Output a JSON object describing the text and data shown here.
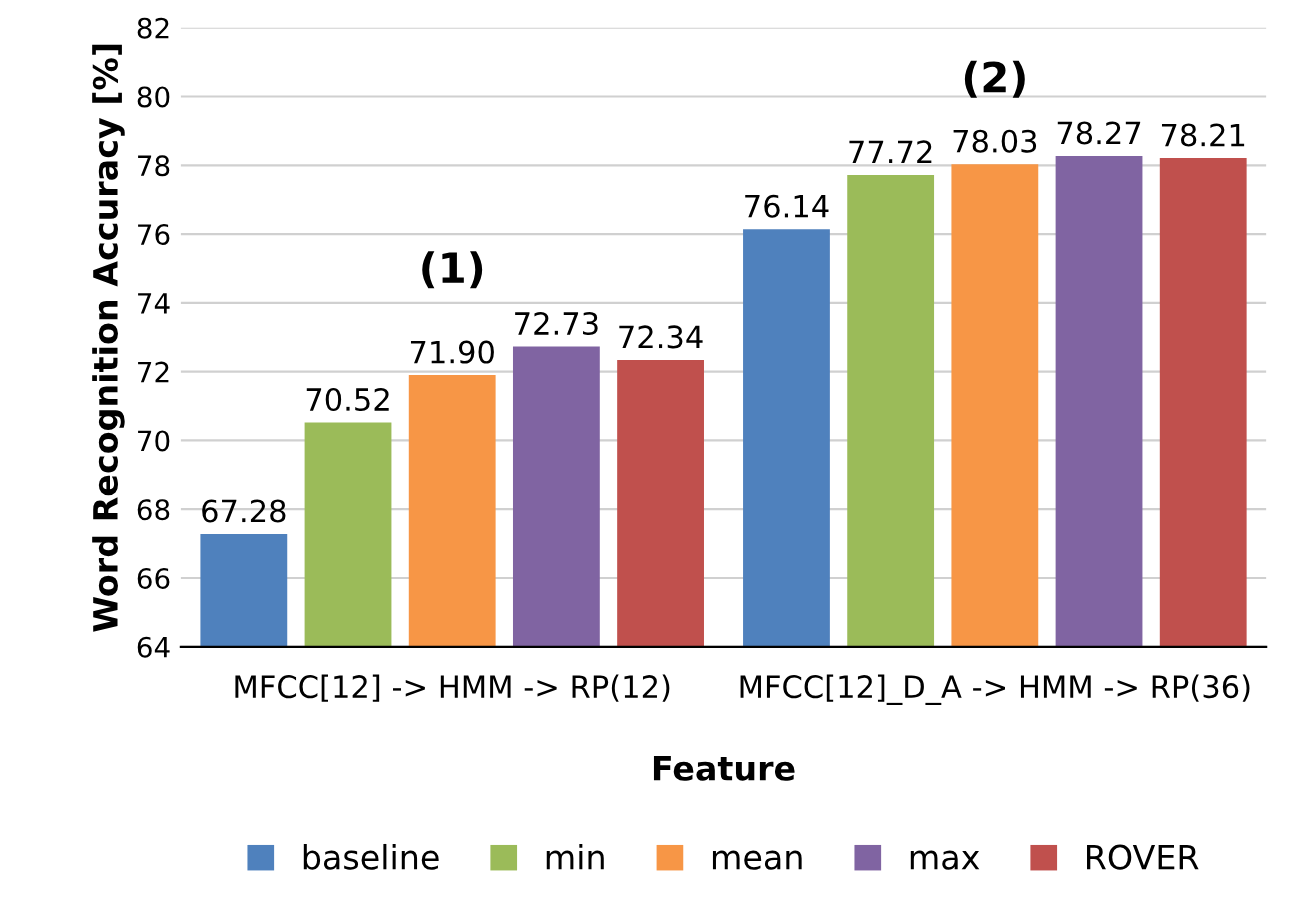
{
  "chart_data": {
    "type": "bar",
    "xlabel": "Feature",
    "ylabel": "Word Recognition Accuracy [%]",
    "categories": [
      "MFCC[12] -> HMM -> RP(12)",
      "MFCC[12]_D_A -> HMM -> RP(36)"
    ],
    "series": [
      {
        "name": "baseline",
        "color": "#4f81bd",
        "values": [
          67.28,
          76.14
        ],
        "value_labels": [
          "67.28",
          "76.14"
        ]
      },
      {
        "name": "min",
        "color": "#9bbb59",
        "values": [
          70.52,
          77.72
        ],
        "value_labels": [
          "70.52",
          "77.72"
        ]
      },
      {
        "name": "mean",
        "color": "#f79646",
        "values": [
          71.9,
          78.03
        ],
        "value_labels": [
          "71.90",
          "78.03"
        ]
      },
      {
        "name": "max",
        "color": "#8064a2",
        "values": [
          72.73,
          78.27
        ],
        "value_labels": [
          "72.73",
          "78.27"
        ]
      },
      {
        "name": "ROVER",
        "color": "#c0504d",
        "values": [
          72.34,
          78.21
        ],
        "value_labels": [
          "72.34",
          "78.21"
        ]
      }
    ],
    "ylim": [
      64,
      82
    ],
    "yticks": [
      64,
      66,
      68,
      70,
      72,
      74,
      76,
      78,
      80,
      82
    ],
    "grid": "y",
    "legend": "bottom",
    "annotations": [
      "(1)",
      "(2)"
    ]
  }
}
